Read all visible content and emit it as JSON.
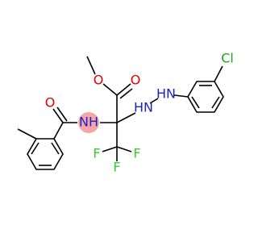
{
  "labels": {
    "ester_o": "O",
    "carbonyl_o": "O",
    "amide_o": "O",
    "amide_nh": "NH",
    "hydrazine_nh_1": "HN",
    "hydrazine_nh_2": "HN",
    "fluorines": [
      "F",
      "F",
      "F"
    ],
    "chlorine": "Cl"
  }
}
